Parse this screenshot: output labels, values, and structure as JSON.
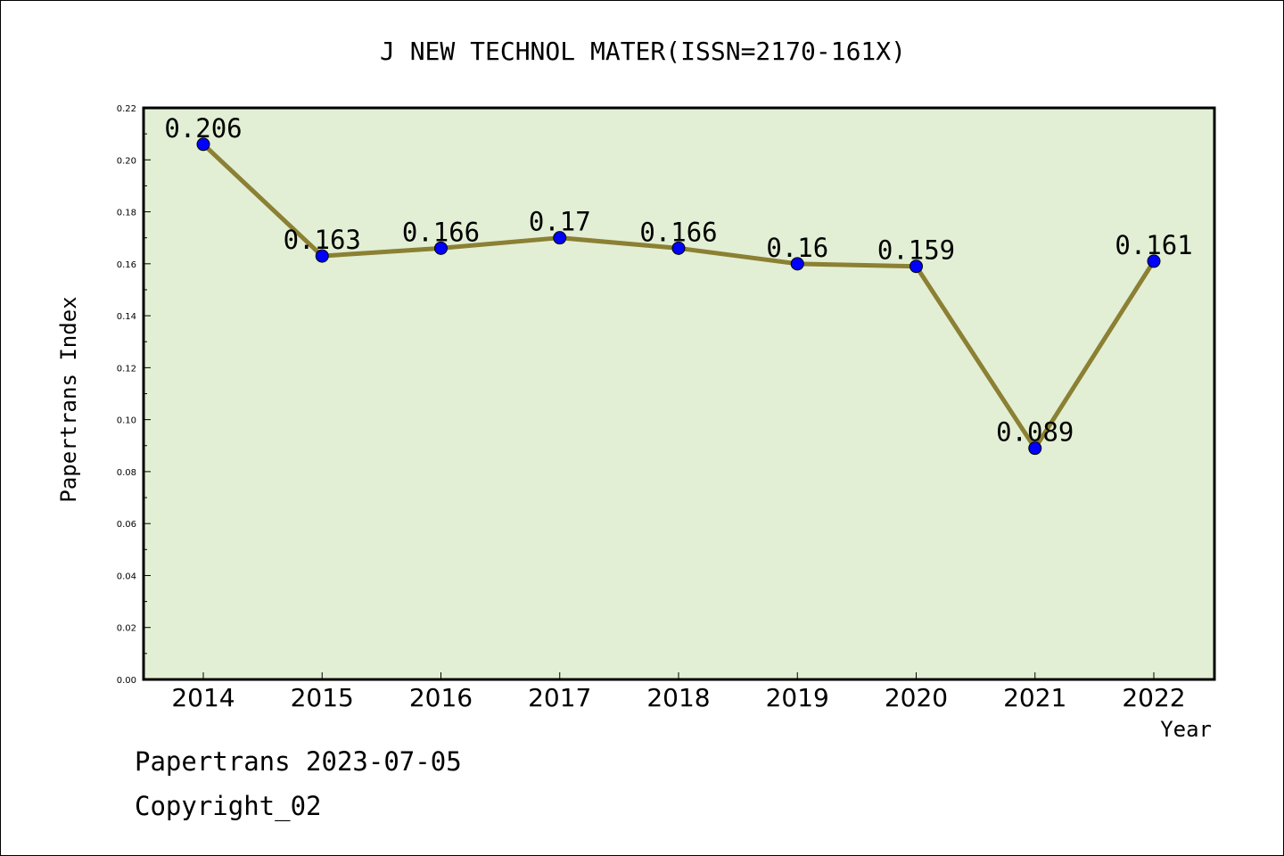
{
  "chart_data": {
    "type": "line",
    "title": "J NEW TECHNOL MATER(ISSN=2170-161X)",
    "xlabel": "Year",
    "ylabel": "Papertrans Index",
    "categories": [
      "2014",
      "2015",
      "2016",
      "2017",
      "2018",
      "2019",
      "2020",
      "2021",
      "2022"
    ],
    "values": [
      0.206,
      0.163,
      0.166,
      0.17,
      0.166,
      0.16,
      0.159,
      0.089,
      0.161
    ],
    "data_labels": [
      "0.206",
      "0.163",
      "0.166",
      "0.17",
      "0.166",
      "0.16",
      "0.159",
      "0.089",
      "0.161"
    ],
    "ylim": [
      0,
      0.22
    ],
    "yticks": [
      "0.00",
      "0.02",
      "0.04",
      "0.06",
      "0.08",
      "0.10",
      "0.12",
      "0.14",
      "0.16",
      "0.18",
      "0.20",
      "0.22"
    ],
    "grid": false,
    "colors": {
      "plot_bg": "#e2efd5",
      "line": "#8b8033",
      "marker": "#0000ff"
    }
  },
  "footer": {
    "credit": "Papertrans 2023-07-05",
    "copyright": "Copyright_02"
  }
}
